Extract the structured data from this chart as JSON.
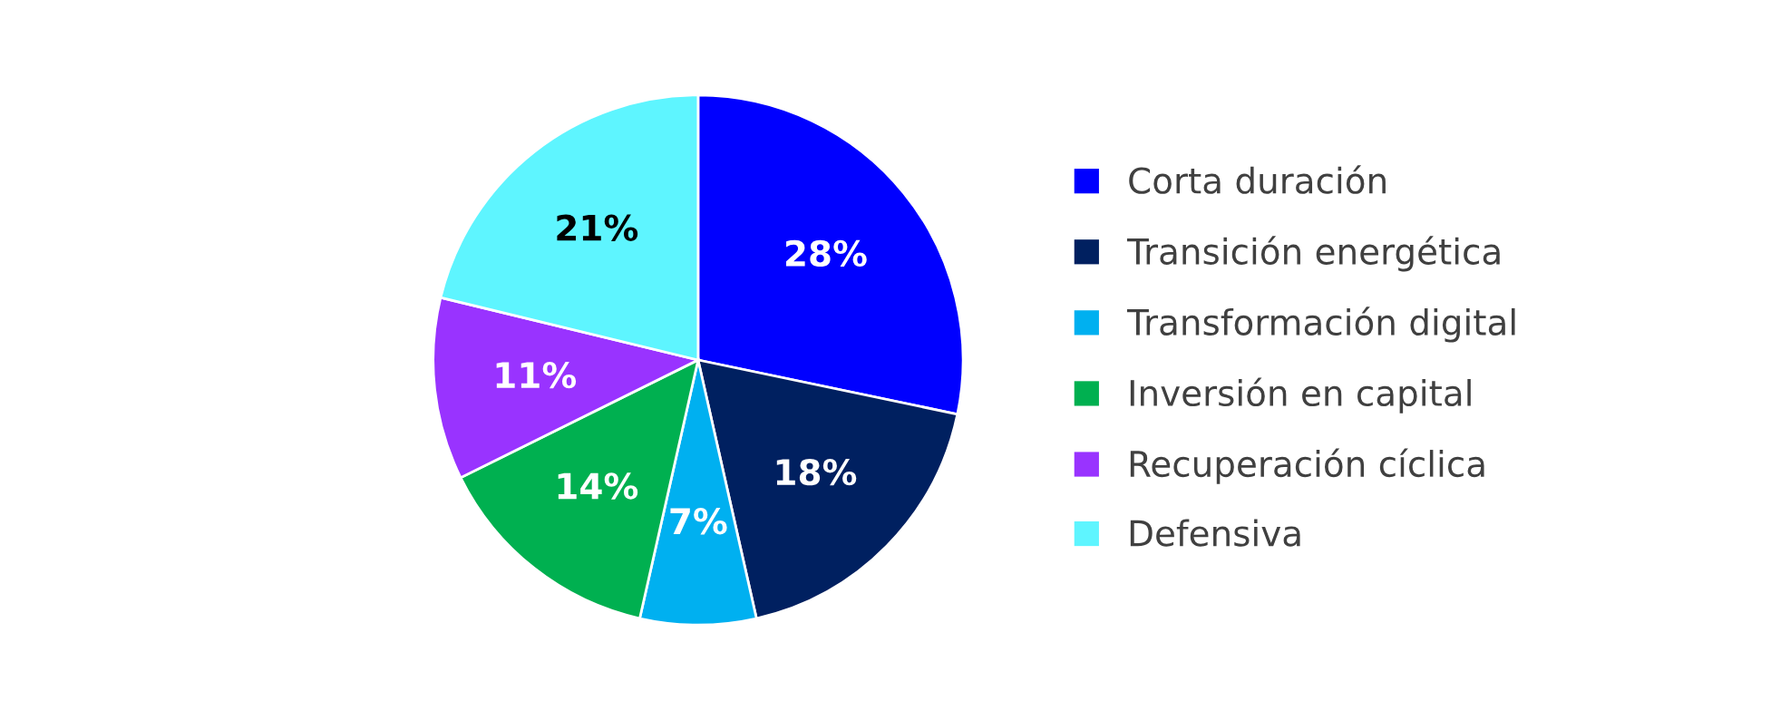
{
  "chart_data": {
    "type": "pie",
    "categories": [
      "Corta duración",
      "Transición energética",
      "Transformación digital",
      "Inversión en capital",
      "Recuperación cíclica",
      "Defensiva"
    ],
    "values": [
      28,
      18,
      7,
      14,
      11,
      21
    ],
    "value_labels": [
      "28%",
      "18%",
      "7%",
      "14%",
      "11%",
      "21%"
    ],
    "colors": [
      "#0000ff",
      "#002060",
      "#00b0f0",
      "#00b050",
      "#9933ff",
      "#5ef5ff"
    ],
    "legend": "right"
  }
}
